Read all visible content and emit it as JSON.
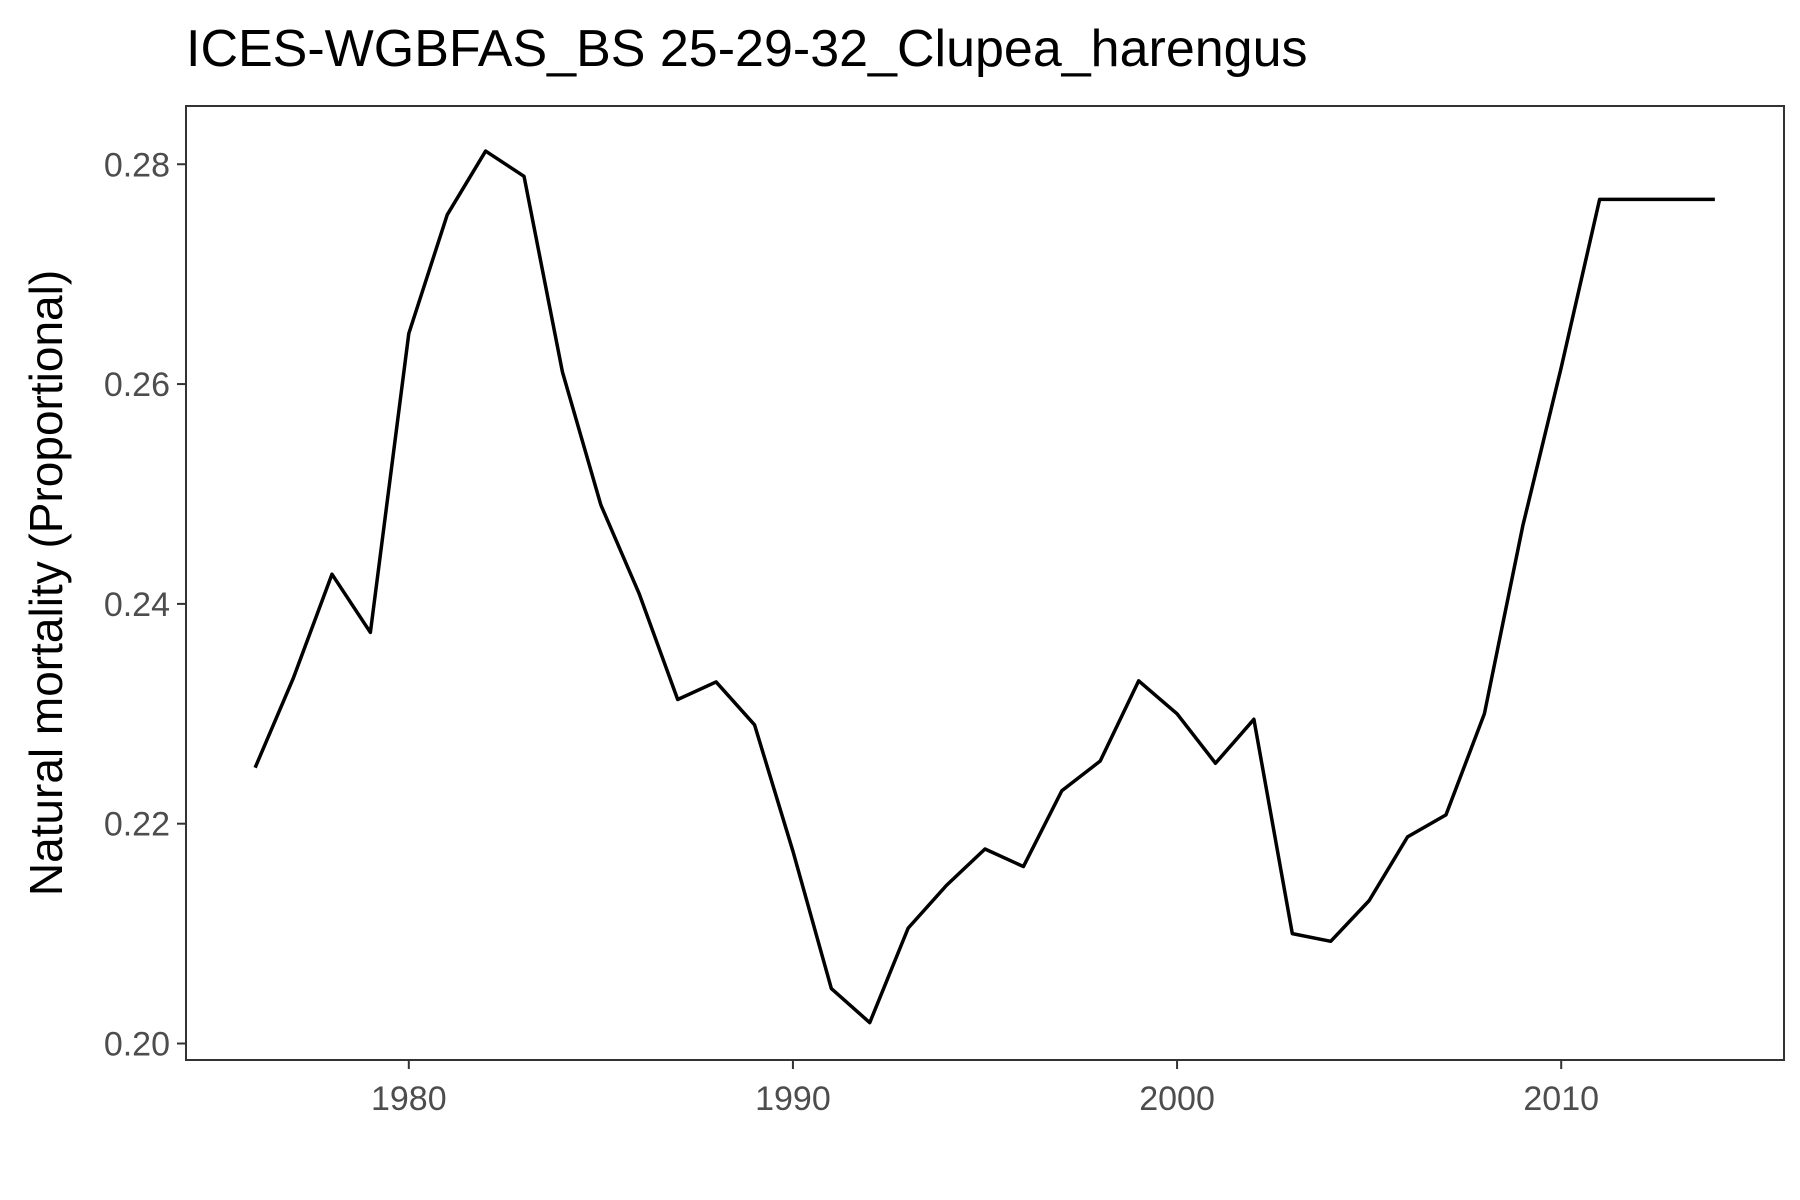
{
  "chart_data": {
    "type": "line",
    "title": "ICES-WGBFAS_BS 25-29-32_Clupea_harengus",
    "xlabel": "",
    "ylabel": "Natural mortality (Proportional)",
    "xlim": [
      1974.2,
      2015.8
    ],
    "ylim": [
      0.1985,
      0.2853
    ],
    "x_ticks": [
      1980,
      1990,
      2000,
      2010
    ],
    "y_ticks": [
      0.2,
      0.22,
      0.24,
      0.26,
      0.28
    ],
    "x_tick_labels": [
      "1980",
      "1990",
      "2000",
      "2010"
    ],
    "y_tick_labels": [
      "0.20",
      "0.22",
      "0.24",
      "0.26",
      "0.28"
    ],
    "grid": false,
    "line_color": "#000000",
    "series": [
      {
        "x": [
          1976,
          1977,
          1978,
          1979,
          1980,
          1981,
          1982,
          1983,
          1984,
          1985,
          1986,
          1987,
          1988,
          1989,
          1990,
          1991,
          1992,
          1993,
          1994,
          1995,
          1996,
          1997,
          1998,
          1999,
          2000,
          2001,
          2002,
          2003,
          2004,
          2005,
          2006,
          2007,
          2008,
          2009,
          2010,
          2011,
          2012,
          2013,
          2014
        ],
        "values": [
          0.2251,
          0.2333,
          0.2427,
          0.2374,
          0.2646,
          0.2754,
          0.2812,
          0.2789,
          0.2611,
          0.249,
          0.2409,
          0.2313,
          0.2329,
          0.229,
          0.2175,
          0.205,
          0.2019,
          0.2105,
          0.2144,
          0.2177,
          0.2161,
          0.223,
          0.2257,
          0.233,
          0.23,
          0.2255,
          0.2295,
          0.21,
          0.2093,
          0.213,
          0.2188,
          0.2208,
          0.23,
          0.2471,
          0.2615,
          0.2768,
          0.2768,
          0.2768,
          0.2768
        ]
      }
    ]
  }
}
